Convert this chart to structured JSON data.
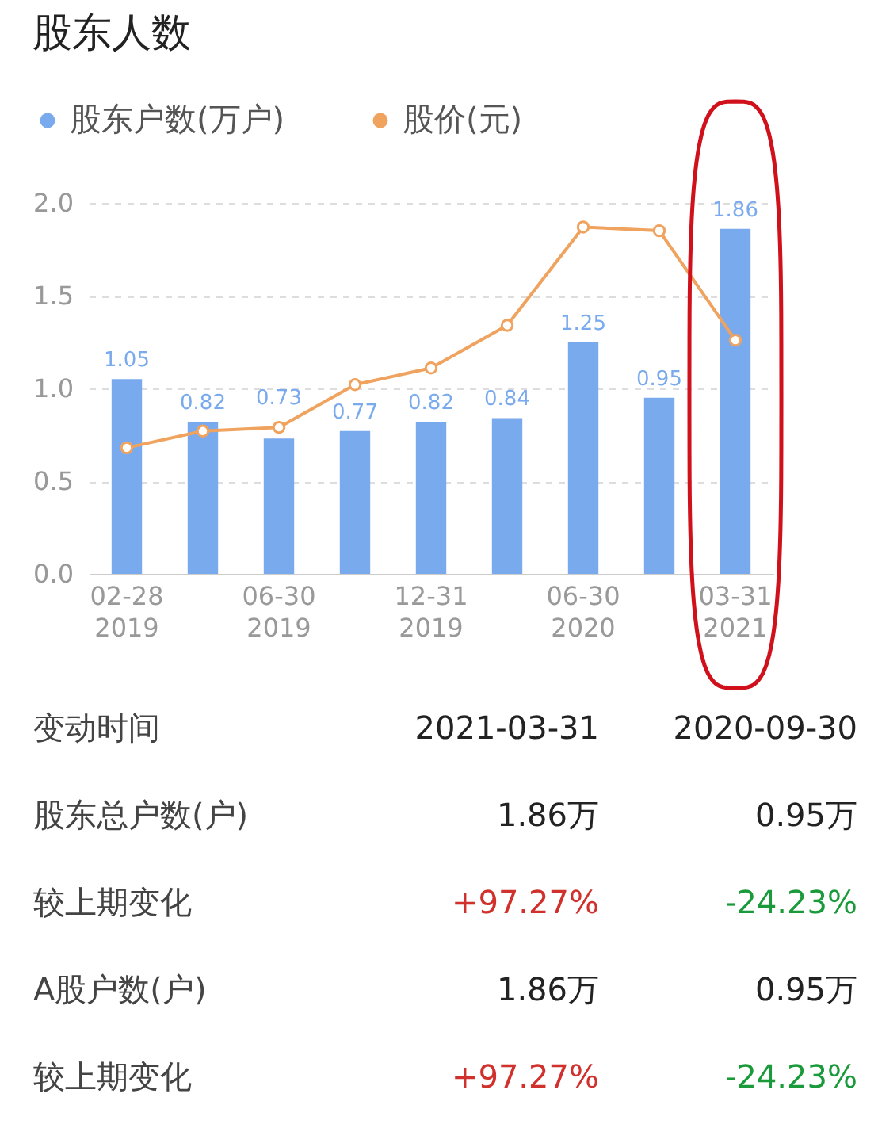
{
  "chart_data": [
    {
      "type": "bar",
      "title": "股东人数",
      "categories": [
        "02-28 2019",
        null,
        "06-30 2019",
        null,
        "12-31 2019",
        null,
        "06-30 2020",
        null,
        "03-31 2021"
      ],
      "series": [
        {
          "name": "股东户数(万户)",
          "color": "#7aaaee",
          "values": [
            1.05,
            0.82,
            0.73,
            0.77,
            0.82,
            0.84,
            1.25,
            0.95,
            1.86
          ],
          "value_labels": [
            "1.05",
            "0.82",
            "0.73",
            "0.77",
            "0.82",
            "0.84",
            "1.25",
            "0.95",
            "1.86"
          ]
        },
        {
          "name": "股价(元)",
          "type": "line",
          "color": "#f0a35e",
          "values": [
            0.68,
            0.77,
            0.79,
            1.02,
            1.11,
            1.34,
            1.87,
            1.85,
            1.26
          ]
        }
      ],
      "ylim": [
        0,
        2
      ],
      "yticks": [
        {
          "value": 0,
          "label": "0.0"
        },
        0.5,
        {
          "value": 1,
          "label": "1.0"
        },
        1.5,
        {
          "value": 2,
          "label": "2.0"
        }
      ],
      "grid": "y",
      "legend": "top left",
      "marker": "circle",
      "line_style": "solid"
    },
    {
      "type": "other",
      "y_categories": [
        "变动时间",
        "股东总户数(户)",
        "较上期变化",
        "A股户数(户)",
        "较上期变化"
      ],
      "cell_labels": [
        [
          "2021-03-31",
          "2020-09-30"
        ],
        [
          "1.86万",
          "0.95万"
        ],
        [
          "+97.27%",
          "-24.23%"
        ],
        [
          "1.86万",
          "0.95万"
        ],
        [
          "+97.27%",
          "-24.23%"
        ]
      ],
      "colors": [
        [
          "#222222",
          "#222222"
        ],
        [
          "#222222",
          "#222222"
        ],
        [
          "#d0312d",
          "#1a9a3a"
        ],
        [
          "#222222",
          "#222222"
        ],
        [
          "#d0312d",
          "#1a9a3a"
        ]
      ]
    }
  ]
}
